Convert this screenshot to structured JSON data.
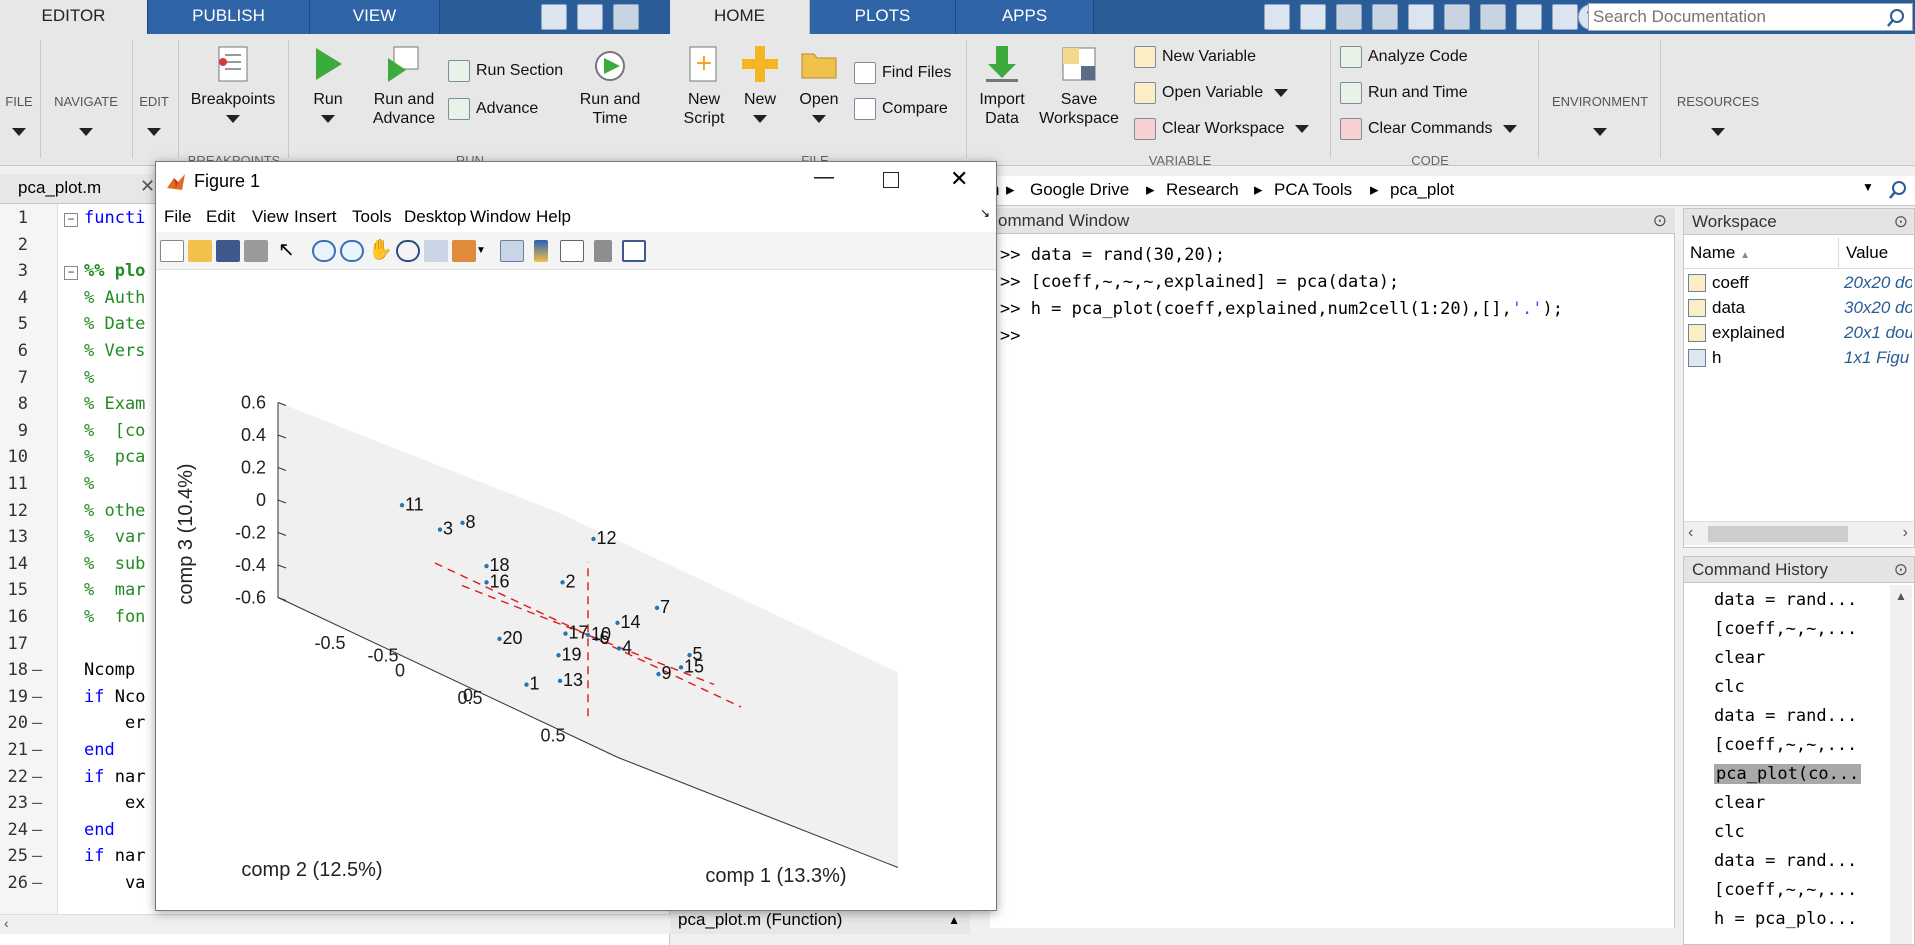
{
  "editor_tabs": [
    "EDITOR",
    "PUBLISH",
    "VIEW"
  ],
  "main_tabs": [
    "HOME",
    "PLOTS",
    "APPS"
  ],
  "search": {
    "placeholder": "Search Documentation"
  },
  "editor_ribbon": {
    "file": "FILE",
    "navigate": "NAVIGATE",
    "edit": "EDIT",
    "breakpoints": "Breakpoints",
    "run": "Run",
    "run_advance": [
      "Run and",
      "Advance"
    ],
    "run_section": "Run Section",
    "advance": "Advance",
    "run_time": [
      "Run and",
      "Time"
    ],
    "sec_breakpoints": "BREAKPOINTS",
    "sec_run": "RUN"
  },
  "home_ribbon": {
    "new_script": [
      "New",
      "Script"
    ],
    "new": "New",
    "open": "Open",
    "find_files": "Find Files",
    "compare": "Compare",
    "import_data": [
      "Import",
      "Data"
    ],
    "save_workspace": [
      "Save",
      "Workspace"
    ],
    "new_variable": "New Variable",
    "open_variable": "Open Variable",
    "clear_workspace": "Clear Workspace",
    "analyze_code": "Analyze Code",
    "run_and_time": "Run and Time",
    "clear_commands": "Clear Commands",
    "environment": "ENVIRONMENT",
    "resources": "RESOURCES",
    "sec_file": "FILE",
    "sec_variable": "VARIABLE",
    "sec_code": "CODE"
  },
  "editor": {
    "file_tab": "pca_plot.m",
    "line_numbers": [
      "1",
      "2",
      "3",
      "4",
      "5",
      "6",
      "7",
      "8",
      "9",
      "10",
      "11",
      "12",
      "13",
      "14",
      "15",
      "16",
      "17",
      "18",
      "19",
      "20",
      "21",
      "22",
      "23",
      "24",
      "25",
      "26"
    ],
    "lines": [
      {
        "text": "functi",
        "cls": "c-kw"
      },
      {
        "text": "",
        "cls": ""
      },
      {
        "text": "%% plo",
        "cls": "c-cmb"
      },
      {
        "text": "% Auth",
        "cls": "c-cm"
      },
      {
        "text": "% Date",
        "cls": "c-cm"
      },
      {
        "text": "% Vers",
        "cls": "c-cm"
      },
      {
        "text": "%",
        "cls": "c-cm"
      },
      {
        "text": "% Exam",
        "cls": "c-cm"
      },
      {
        "text": "%  [co",
        "cls": "c-cm"
      },
      {
        "text": "%  pca",
        "cls": "c-cm"
      },
      {
        "text": "%",
        "cls": "c-cm"
      },
      {
        "text": "% othe",
        "cls": "c-cm"
      },
      {
        "text": "%  var",
        "cls": "c-cm"
      },
      {
        "text": "%  sub",
        "cls": "c-cm"
      },
      {
        "text": "%  mar",
        "cls": "c-cm"
      },
      {
        "text": "%  fon",
        "cls": "c-cm"
      },
      {
        "text": "",
        "cls": ""
      },
      {
        "text": "Ncomp ",
        "cls": ""
      },
      {
        "text": "if Nco",
        "cls": "c-kw-mixed"
      },
      {
        "text": "    er",
        "cls": ""
      },
      {
        "text": "end",
        "cls": "c-kw"
      },
      {
        "text": "if nar",
        "cls": "c-kw-mixed"
      },
      {
        "text": "    ex",
        "cls": ""
      },
      {
        "text": "end",
        "cls": "c-kw"
      },
      {
        "text": "if nar",
        "cls": "c-kw-mixed"
      },
      {
        "text": "    va",
        "cls": ""
      }
    ]
  },
  "address": {
    "path": [
      "n",
      "Google Drive",
      "Research",
      "PCA Tools",
      "pca_plot"
    ]
  },
  "command_window": {
    "title": "ommand Window",
    "lines": [
      ">> data = rand(30,20);",
      ">> [coeff,~,~,~,explained] = pca(data);",
      ">> h = pca_plot(coeff,explained,num2cell(1:20),[],",
      ">> "
    ],
    "string_part": "'.'",
    "line3_end": ");"
  },
  "workspace": {
    "title": "Workspace",
    "col_name": "Name",
    "col_value": "Value",
    "rows": [
      {
        "name": "coeff",
        "value": "20x20 do"
      },
      {
        "name": "data",
        "value": "30x20 do"
      },
      {
        "name": "explained",
        "value": "20x1 dou"
      },
      {
        "name": "h",
        "value": "1x1 Figu"
      }
    ]
  },
  "history": {
    "title": "Command History",
    "items": [
      "data = rand...",
      "[coeff,~,~,...",
      "clear",
      "clc",
      "data = rand...",
      "[coeff,~,~,...",
      "pca_plot(co...",
      "clear",
      "clc",
      "data = rand...",
      "[coeff,~,~,...",
      "h = pca_plo..."
    ],
    "selected_index": 6
  },
  "status": {
    "text": "pca_plot.m  (Function)"
  },
  "figure": {
    "title": "Figure 1",
    "menu": [
      "File",
      "Edit",
      "View",
      "Insert",
      "Tools",
      "Desktop",
      "Window",
      "Help"
    ]
  },
  "chart_data": {
    "type": "scatter",
    "projection": "3d",
    "xlabel": "comp 1 (13.3%)",
    "ylabel": "comp 2 (12.5%)",
    "zlabel": "comp 3 (10.4%)",
    "x_ticks": [
      "-0.5",
      "0",
      "0.5"
    ],
    "y_ticks": [
      "-0.5",
      "0",
      "0.5"
    ],
    "z_ticks": [
      "-0.6",
      "-0.4",
      "-0.2",
      "0",
      "0.2",
      "0.4",
      "0.6"
    ],
    "marker_color": "#1f77b4",
    "axis_line_color": "#e0191b",
    "points": [
      {
        "label": "1",
        "x": 0.05,
        "y": 0.5,
        "z": -0.45
      },
      {
        "label": "2",
        "x": -0.15,
        "y": 0.0,
        "z": 0.25
      },
      {
        "label": "3",
        "x": -0.5,
        "y": 0.45,
        "z": 0.25
      },
      {
        "label": "4",
        "x": 0.1,
        "y": -0.1,
        "z": 0.0
      },
      {
        "label": "5",
        "x": 0.35,
        "y": -0.3,
        "z": 0.15
      },
      {
        "label": "6",
        "x": 0.05,
        "y": 0.0,
        "z": 0.0
      },
      {
        "label": "7",
        "x": 0.2,
        "y": -0.25,
        "z": 0.35
      },
      {
        "label": "8",
        "x": -0.45,
        "y": 0.35,
        "z": 0.35
      },
      {
        "label": "9",
        "x": 0.25,
        "y": -0.2,
        "z": -0.05
      },
      {
        "label": "10",
        "x": 0.0,
        "y": 0.0,
        "z": 0.0
      },
      {
        "label": "11",
        "x": -0.6,
        "y": 0.6,
        "z": 0.3
      },
      {
        "label": "12",
        "x": -0.05,
        "y": -0.1,
        "z": 0.6
      },
      {
        "label": "13",
        "x": 0.0,
        "y": 0.2,
        "z": -0.35
      },
      {
        "label": "14",
        "x": 0.05,
        "y": -0.15,
        "z": 0.15
      },
      {
        "label": "15",
        "x": 0.3,
        "y": -0.3,
        "z": 0.05
      },
      {
        "label": "16",
        "x": -0.35,
        "y": 0.3,
        "z": 0.05
      },
      {
        "label": "17",
        "x": -0.05,
        "y": 0.1,
        "z": -0.05
      },
      {
        "label": "18",
        "x": -0.35,
        "y": 0.3,
        "z": 0.15
      },
      {
        "label": "19",
        "x": -0.05,
        "y": 0.15,
        "z": -0.2
      },
      {
        "label": "20",
        "x": -0.15,
        "y": 0.45,
        "z": -0.25
      }
    ]
  }
}
